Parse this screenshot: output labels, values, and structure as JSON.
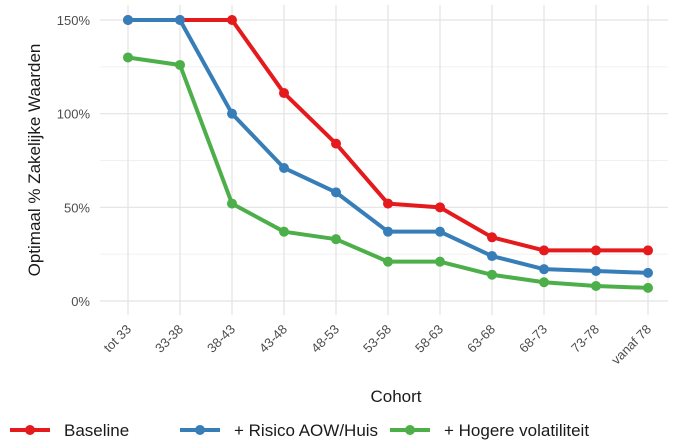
{
  "chart_data": {
    "type": "line",
    "xlabel": "Cohort",
    "ylabel": "Optimaal % Zakelijke Waarden",
    "categories": [
      "tot 33",
      "33-38",
      "38-43",
      "43-48",
      "48-53",
      "53-58",
      "58-63",
      "63-68",
      "68-73",
      "73-78",
      "vanaf 78"
    ],
    "y_ticks": [
      "0%",
      "50%",
      "100%",
      "150%"
    ],
    "ylim": [
      0,
      150
    ],
    "grid": true,
    "legend_position": "bottom",
    "series": [
      {
        "name": "Baseline",
        "color": "#e41a1c",
        "values": [
          150,
          150,
          150,
          111,
          84,
          52,
          50,
          34,
          27,
          27,
          27
        ]
      },
      {
        "name": "+ Risico AOW/Huis",
        "color": "#377eb8",
        "values": [
          150,
          150,
          100,
          71,
          58,
          37,
          37,
          24,
          17,
          16,
          15
        ]
      },
      {
        "name": "+ Hogere volatiliteit",
        "color": "#4daf4a",
        "values": [
          130,
          126,
          52,
          37,
          33,
          21,
          21,
          14,
          10,
          8,
          7
        ]
      }
    ]
  }
}
